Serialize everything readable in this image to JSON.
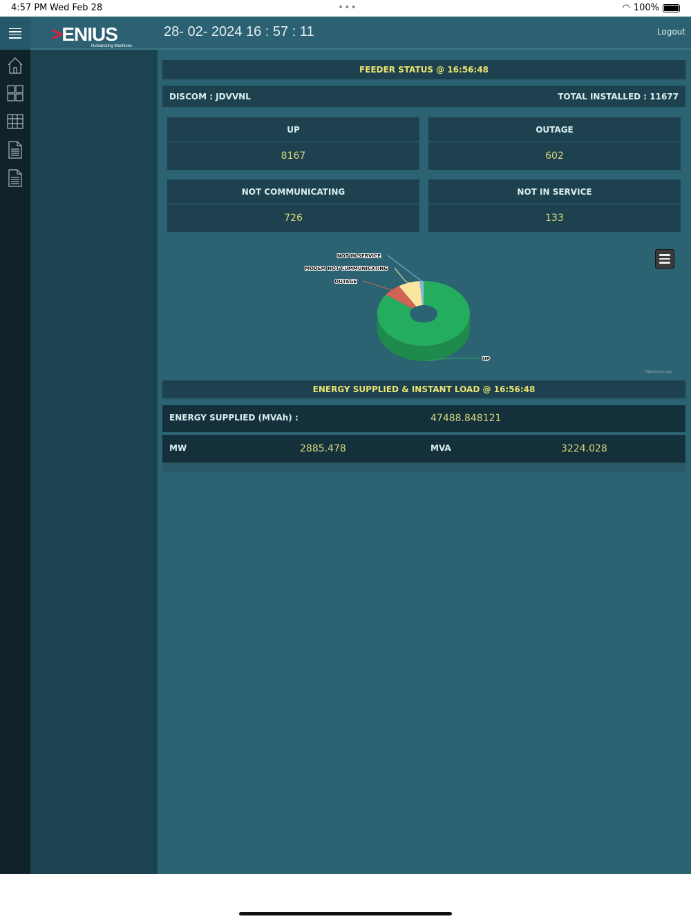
{
  "status_bar": {
    "time": "4:57 PM",
    "date": "Wed Feb 28",
    "battery": "100%"
  },
  "header": {
    "logo": "XENIUS",
    "logo_tagline": "Humanizing Machines",
    "datetime": "28- 02- 2024 16 : 57 : 11",
    "logout": "Logout"
  },
  "nav_icons": [
    "home-icon",
    "dashboard-icon",
    "grid-icon",
    "report-icon",
    "document-icon"
  ],
  "feeder": {
    "title": "FEEDER STATUS @ 16:56:48",
    "discom": "DISCOM : JDVVNL",
    "total_installed": "TOTAL INSTALLED : 11677",
    "cards": [
      {
        "label": "UP",
        "value": "8167"
      },
      {
        "label": "OUTAGE",
        "value": "602"
      },
      {
        "label": "NOT COMMUNICATING",
        "value": "726"
      },
      {
        "label": "NOT IN SERVICE",
        "value": "133"
      }
    ]
  },
  "chart_data": {
    "type": "pie",
    "variant": "3d-donut",
    "credit": "Highcharts.com",
    "slices": [
      {
        "name": "UP",
        "value": 8167,
        "color": "#25ad5f"
      },
      {
        "name": "OUTAGE",
        "value": 602,
        "color": "#cf6455"
      },
      {
        "name": "MODEM NOT CUMMUNICATING",
        "value": 726,
        "color": "#fbe6a0"
      },
      {
        "name": "NOT IN SERVICE",
        "value": 133,
        "color": "#8cb9d9"
      }
    ]
  },
  "energy": {
    "title": "ENERGY SUPPLIED & INSTANT LOAD @ 16:56:48",
    "supplied_label": "ENERGY SUPPLIED (MVAh) :",
    "supplied_value": "47488.848121",
    "mw_label": "MW",
    "mw_value": "2885.478",
    "mva_label": "MVA",
    "mva_value": "3224.028"
  }
}
